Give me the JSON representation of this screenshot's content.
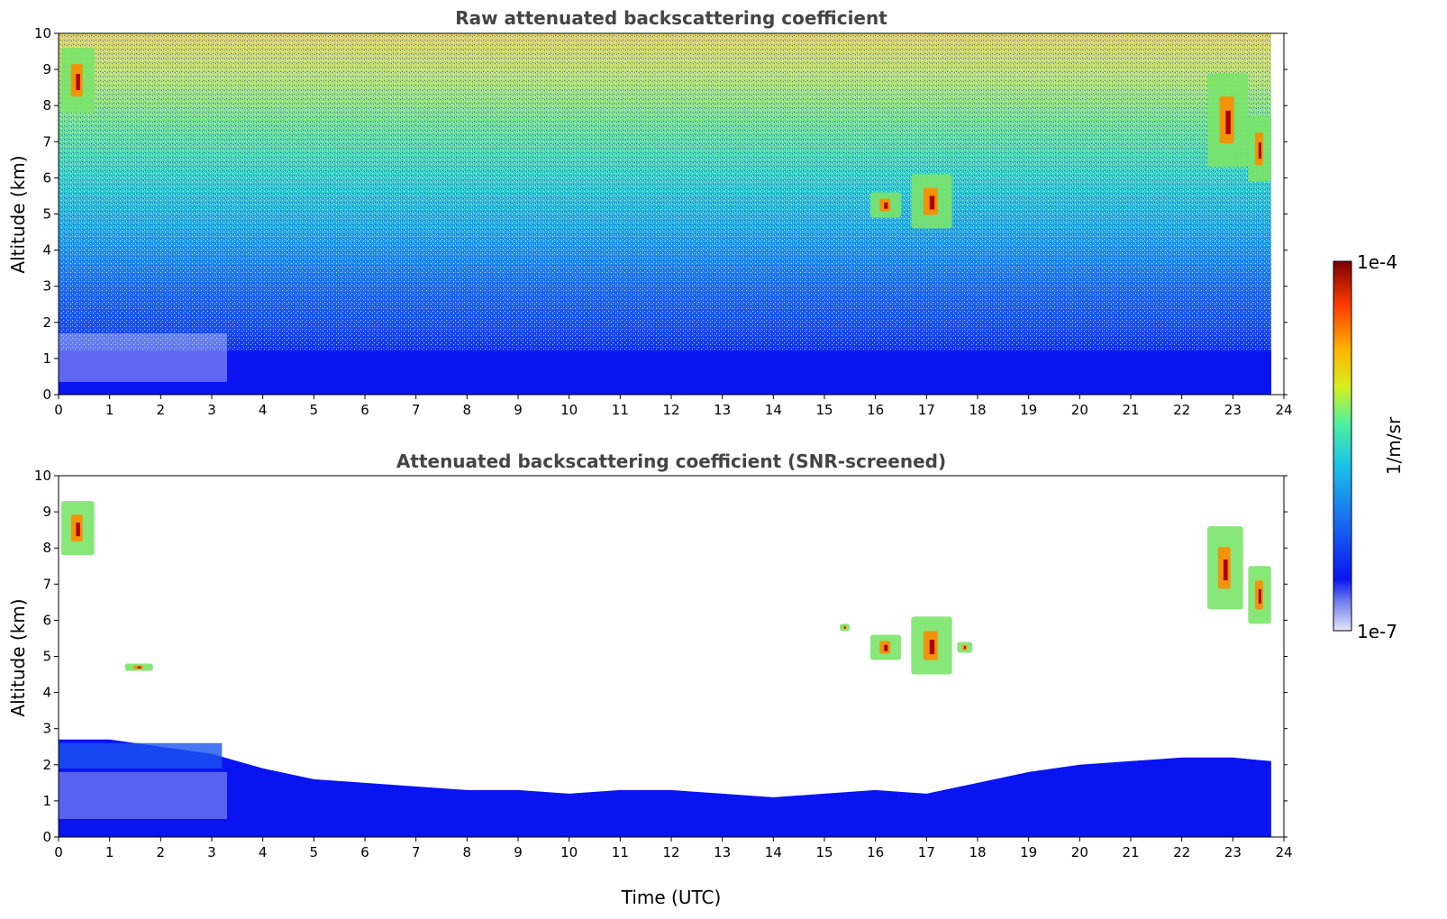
{
  "chart_data": [
    {
      "type": "heatmap",
      "title": "Raw attenuated backscattering coefficient",
      "xlabel": "",
      "ylabel": "Altitude (km)",
      "xlim": [
        0,
        24
      ],
      "ylim": [
        0,
        10
      ],
      "x_ticks": [
        0,
        1,
        2,
        3,
        4,
        5,
        6,
        7,
        8,
        9,
        10,
        11,
        12,
        13,
        14,
        15,
        16,
        17,
        18,
        19,
        20,
        21,
        22,
        23,
        24
      ],
      "y_ticks": [
        0,
        1,
        2,
        3,
        4,
        5,
        6,
        7,
        8,
        9,
        10
      ],
      "x_tick_labels": [
        "0",
        "1",
        "2",
        "3",
        "4",
        "5",
        "6",
        "7",
        "8",
        "9",
        "10",
        "11",
        "12",
        "13",
        "14",
        "15",
        "16",
        "17",
        "18",
        "19",
        "20",
        "21",
        "22",
        "23",
        "24"
      ],
      "y_tick_labels": [
        "0",
        "1",
        "2",
        "3",
        "4",
        "5",
        "6",
        "7",
        "8",
        "9",
        "10"
      ],
      "data_extent_time": [
        0,
        23.75
      ],
      "features": [
        {
          "kind": "boundary-layer",
          "time": [
            0,
            23.75
          ],
          "altitude": [
            0,
            1.2
          ]
        },
        {
          "kind": "cloud",
          "time": [
            0.05,
            0.7
          ],
          "altitude": [
            7.8,
            9.6
          ]
        },
        {
          "kind": "cloud",
          "time": [
            15.9,
            16.5
          ],
          "altitude": [
            4.9,
            5.6
          ]
        },
        {
          "kind": "cloud",
          "time": [
            16.7,
            17.5
          ],
          "altitude": [
            4.6,
            6.1
          ]
        },
        {
          "kind": "cloud",
          "time": [
            22.5,
            23.3
          ],
          "altitude": [
            6.3,
            8.9
          ]
        },
        {
          "kind": "cloud",
          "time": [
            23.3,
            23.75
          ],
          "altitude": [
            5.9,
            7.7
          ]
        }
      ]
    },
    {
      "type": "heatmap",
      "title": "Attenuated backscattering coefficient (SNR-screened)",
      "xlabel": "Time (UTC)",
      "ylabel": "Altitude (km)",
      "xlim": [
        0,
        24
      ],
      "ylim": [
        0,
        10
      ],
      "x_ticks": [
        0,
        1,
        2,
        3,
        4,
        5,
        6,
        7,
        8,
        9,
        10,
        11,
        12,
        13,
        14,
        15,
        16,
        17,
        18,
        19,
        20,
        21,
        22,
        23,
        24
      ],
      "y_ticks": [
        0,
        1,
        2,
        3,
        4,
        5,
        6,
        7,
        8,
        9,
        10
      ],
      "x_tick_labels": [
        "0",
        "1",
        "2",
        "3",
        "4",
        "5",
        "6",
        "7",
        "8",
        "9",
        "10",
        "11",
        "12",
        "13",
        "14",
        "15",
        "16",
        "17",
        "18",
        "19",
        "20",
        "21",
        "22",
        "23",
        "24"
      ],
      "y_tick_labels": [
        "0",
        "1",
        "2",
        "3",
        "4",
        "5",
        "6",
        "7",
        "8",
        "9",
        "10"
      ],
      "data_extent_time": [
        0,
        23.75
      ],
      "boundary_layer_top": {
        "time": [
          0,
          1,
          2,
          3,
          4,
          5,
          6,
          7,
          8,
          9,
          10,
          11,
          12,
          13,
          14,
          15,
          16,
          17,
          18,
          19,
          20,
          21,
          22,
          23,
          23.75
        ],
        "altitude": [
          2.7,
          2.7,
          2.5,
          2.3,
          1.9,
          1.6,
          1.5,
          1.4,
          1.3,
          1.3,
          1.2,
          1.3,
          1.3,
          1.2,
          1.1,
          1.2,
          1.3,
          1.2,
          1.5,
          1.8,
          2.0,
          2.1,
          2.2,
          2.2,
          2.1
        ]
      },
      "features": [
        {
          "kind": "cloud",
          "time": [
            0.05,
            0.7
          ],
          "altitude": [
            7.8,
            9.3
          ]
        },
        {
          "kind": "cloud",
          "time": [
            1.3,
            1.85
          ],
          "altitude": [
            4.6,
            4.8
          ]
        },
        {
          "kind": "cloud",
          "time": [
            15.3,
            15.5
          ],
          "altitude": [
            5.7,
            5.9
          ]
        },
        {
          "kind": "cloud",
          "time": [
            15.9,
            16.5
          ],
          "altitude": [
            4.9,
            5.6
          ]
        },
        {
          "kind": "cloud",
          "time": [
            16.7,
            17.5
          ],
          "altitude": [
            4.5,
            6.1
          ]
        },
        {
          "kind": "cloud",
          "time": [
            17.6,
            17.9
          ],
          "altitude": [
            5.1,
            5.4
          ]
        },
        {
          "kind": "cloud",
          "time": [
            22.5,
            23.2
          ],
          "altitude": [
            6.3,
            8.6
          ]
        },
        {
          "kind": "cloud",
          "time": [
            23.3,
            23.75
          ],
          "altitude": [
            5.9,
            7.5
          ]
        }
      ]
    }
  ],
  "colorbar": {
    "label": "1/m/sr",
    "max_label": "1e-4",
    "min_label": "1e-7",
    "scale": "log",
    "range": [
      1e-07,
      0.0001
    ],
    "colors": [
      "#e8e8f8",
      "#aab0f2",
      "#6e7cee",
      "#0a14f0",
      "#1a6ef0",
      "#19c4e8",
      "#4ef0a0",
      "#d8f020",
      "#ffb400",
      "#ff3c00",
      "#7a0000"
    ]
  }
}
